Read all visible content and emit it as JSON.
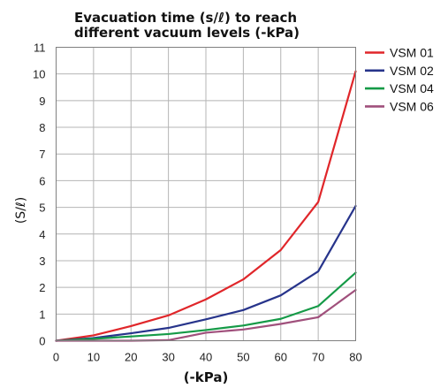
{
  "chart_data": {
    "type": "line",
    "title_lines": [
      "Evacuation time (s/ℓ) to reach",
      "different vacuum levels (-kPa)"
    ],
    "xlabel": "(-kPa)",
    "ylabel": "(S/ℓ)",
    "x": [
      0,
      10,
      20,
      30,
      40,
      50,
      60,
      70,
      80
    ],
    "x_ticks": [
      "0",
      "10",
      "20",
      "30",
      "40",
      "50",
      "60",
      "70",
      "80"
    ],
    "y_ticks": [
      "0",
      "1",
      "2",
      "3",
      "4",
      "5",
      "6",
      "7",
      "8",
      "9",
      "10",
      "11"
    ],
    "xlim": [
      0,
      80
    ],
    "ylim": [
      0,
      11
    ],
    "grid": true,
    "legend_position": "right",
    "series": [
      {
        "name": "VSM 01",
        "color": "#e0262a",
        "values": [
          0,
          0.2,
          0.55,
          0.95,
          1.55,
          2.3,
          3.4,
          5.2,
          10.1
        ]
      },
      {
        "name": "VSM 02",
        "color": "#27348b",
        "values": [
          0,
          0.1,
          0.28,
          0.48,
          0.8,
          1.15,
          1.7,
          2.6,
          5.05
        ]
      },
      {
        "name": "VSM 04",
        "color": "#159a47",
        "values": [
          0,
          0.07,
          0.16,
          0.25,
          0.4,
          0.57,
          0.82,
          1.3,
          2.55
        ]
      },
      {
        "name": "VSM 06",
        "color": "#a0507c",
        "values": [
          0,
          0.0,
          0.0,
          0.02,
          0.3,
          0.42,
          0.63,
          0.88,
          1.9
        ]
      }
    ]
  }
}
